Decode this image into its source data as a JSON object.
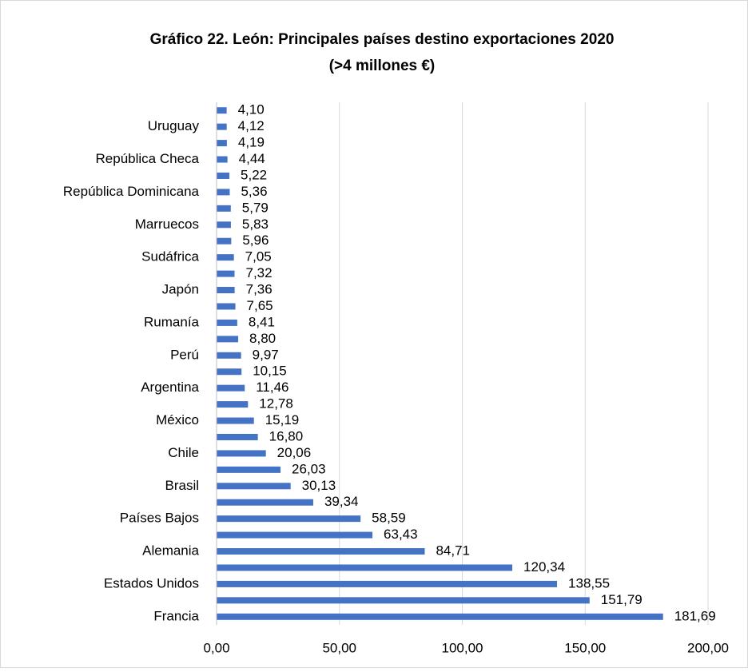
{
  "chart_data": {
    "type": "barh",
    "title": [
      "Gráfico 22. León: Principales países destino exportaciones 2020",
      "(>4 millones €)"
    ],
    "categories": [
      "Francia",
      null,
      "Estados Unidos",
      null,
      "Alemania",
      null,
      "Países Bajos",
      null,
      "Brasil",
      null,
      "Chile",
      null,
      "México",
      null,
      "Argentina",
      null,
      "Perú",
      null,
      "Rumanía",
      null,
      "Japón",
      null,
      "Sudáfrica",
      null,
      "Marruecos",
      null,
      "República Dominicana",
      null,
      "República Checa",
      null,
      "Uruguay",
      null
    ],
    "values": [
      181.69,
      151.79,
      138.55,
      120.34,
      84.71,
      63.43,
      58.59,
      39.34,
      30.13,
      26.03,
      20.06,
      16.8,
      15.19,
      12.78,
      11.46,
      10.15,
      9.97,
      8.8,
      8.41,
      7.65,
      7.36,
      7.32,
      7.05,
      5.96,
      5.83,
      5.79,
      5.36,
      5.22,
      4.44,
      4.19,
      4.12,
      4.1
    ],
    "value_labels": [
      "181,69",
      "151,79",
      "138,55",
      "120,34",
      "84,71",
      "63,43",
      "58,59",
      "39,34",
      "30,13",
      "26,03",
      "20,06",
      "16,80",
      "15,19",
      "12,78",
      "11,46",
      "10,15",
      "9,97",
      "8,80",
      "8,41",
      "7,65",
      "7,36",
      "7,32",
      "7,05",
      "5,96",
      "5,83",
      "5,79",
      "5,36",
      "5,22",
      "4,44",
      "4,19",
      "4,12",
      "4,10"
    ],
    "color": "#4472c4",
    "xlim": [
      0,
      200
    ],
    "xticks": [
      {
        "value": 0,
        "label": "0,00"
      },
      {
        "value": 50,
        "label": "50,00"
      },
      {
        "value": 100,
        "label": "100,00"
      },
      {
        "value": 150,
        "label": "150,00"
      },
      {
        "value": 200,
        "label": "200,00"
      }
    ],
    "grid": true
  }
}
